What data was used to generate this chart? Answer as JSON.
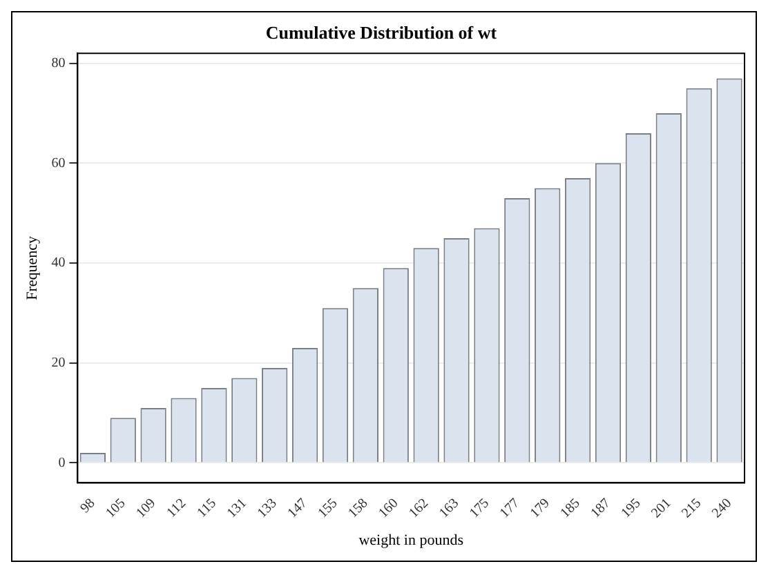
{
  "chart_data": {
    "type": "bar",
    "title": "Cumulative Distribution of wt",
    "xlabel": "weight in pounds",
    "ylabel": "Frequency",
    "categories": [
      "98",
      "105",
      "109",
      "112",
      "115",
      "131",
      "133",
      "147",
      "155",
      "158",
      "160",
      "162",
      "163",
      "175",
      "177",
      "179",
      "185",
      "187",
      "195",
      "201",
      "215",
      "240"
    ],
    "values": [
      2,
      9,
      11,
      13,
      15,
      17,
      19,
      23,
      31,
      35,
      39,
      43,
      45,
      47,
      53,
      55,
      57,
      60,
      66,
      70,
      75,
      77
    ],
    "color": "#dae3ee",
    "ylim": [
      -4,
      82
    ],
    "yticks": [
      0,
      20,
      40,
      60,
      80
    ],
    "grid": "y"
  }
}
